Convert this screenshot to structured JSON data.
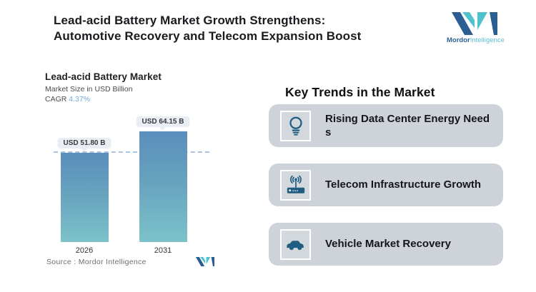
{
  "header": {
    "title": "Lead-acid Battery Market Growth Strengthens:\nAutomotive Recovery and Telecom Expansion Boost",
    "logo": {
      "brand_bold": "Mordor",
      "brand_light": "Intelligence"
    }
  },
  "chart": {
    "title": "Lead-acid Battery Market",
    "subtitle": "Market Size in USD Billion",
    "cagr_label": "CAGR ",
    "cagr_value": "4.37%",
    "source": "Source :  Mordor Intelligence"
  },
  "chart_data": {
    "type": "bar",
    "title": "Lead-acid Battery Market",
    "subtitle": "Market Size in USD Billion",
    "cagr": "4.37%",
    "categories": [
      "2026",
      "2031"
    ],
    "values": [
      51.8,
      64.15
    ],
    "bar_labels": [
      "USD 51.80 B",
      "USD 64.15 B"
    ],
    "reference_line": 51.8,
    "ylim": [
      0,
      64.15
    ],
    "grid": false,
    "legend": false,
    "colors": {
      "bar_top": "#5a8ebc",
      "bar_bottom": "#7cc2ca",
      "dash_line": "#a9c3de",
      "cagr_accent": "#73a9d6"
    }
  },
  "trends": {
    "heading": "Key Trends in the Market",
    "items": [
      {
        "icon": "lightbulb-icon",
        "label": "Rising Data Center Energy Need\ns"
      },
      {
        "icon": "telecom-antenna-icon",
        "label": "Telecom Infrastructure Growth"
      },
      {
        "icon": "car-icon",
        "label": "Vehicle Market Recovery"
      }
    ]
  },
  "colors": {
    "background": "#ffffff",
    "card_bg": "#cdd3d9",
    "icon_accent": "#1f5e80",
    "logo_dark": "#2b5f93",
    "logo_teal": "#4fc2ce"
  }
}
